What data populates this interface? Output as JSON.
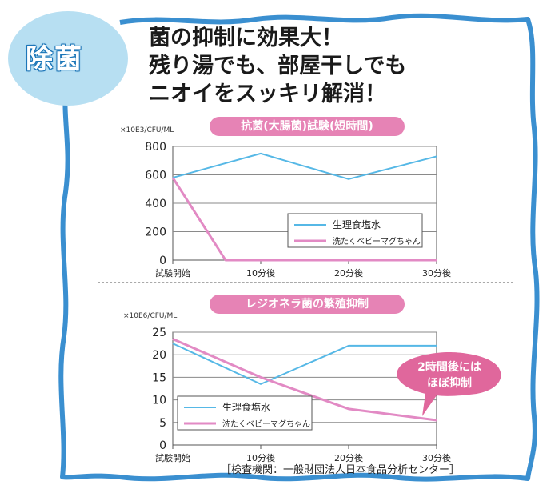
{
  "badge": {
    "label": "除菌",
    "fill": "#b7dff2",
    "text_color": "#ffffff"
  },
  "headline": {
    "line1": "菌の抑制に効果大！",
    "line2": "残り湯でも、部屋干しでも",
    "line3": "ニオイをスッキリ解消！"
  },
  "colors": {
    "frame": "#3a8fd0",
    "pill": "#e683b5",
    "series_saline": "#56b8e6",
    "series_product": "#e28ac4",
    "callout": "#e0679c"
  },
  "footer": {
    "inspection": "［検査機関：一般財団法人日本食品分析センター］"
  },
  "chart_data": [
    {
      "type": "line",
      "title": "抗菌(大腸菌)試験(短時間)",
      "unit": "×10E3/CFU/ML",
      "categories": [
        "試験開始",
        "10分後",
        "20分後",
        "30分後"
      ],
      "ylim": [
        0,
        800
      ],
      "yticks": [
        0,
        200,
        400,
        600,
        800
      ],
      "grid": true,
      "legend_position": "inside-right",
      "series": [
        {
          "name": "生理食塩水",
          "x": [
            0,
            1,
            2,
            3
          ],
          "values": [
            580,
            750,
            570,
            730
          ]
        },
        {
          "name": "洗たくベビーマグちゃん",
          "x": [
            0,
            0.6,
            1,
            3
          ],
          "values": [
            580,
            0,
            0,
            0
          ]
        }
      ]
    },
    {
      "type": "line",
      "title": "レジオネラ菌の繁殖抑制",
      "unit": "×10E6/CFU/ML",
      "categories": [
        "試験開始",
        "10分後",
        "20分後",
        "30分後"
      ],
      "ylim": [
        0,
        25
      ],
      "yticks": [
        0,
        5,
        10,
        15,
        20,
        25
      ],
      "grid": true,
      "legend_position": "inside-left",
      "annotation": "2時間後には\nほぼ抑制",
      "series": [
        {
          "name": "生理食塩水",
          "x": [
            0,
            1,
            2,
            3
          ],
          "values": [
            22.5,
            13.5,
            22,
            22
          ]
        },
        {
          "name": "洗たくベビーマグちゃん",
          "x": [
            0,
            1,
            2,
            3
          ],
          "values": [
            23.5,
            15,
            8,
            5.5
          ]
        }
      ]
    }
  ]
}
